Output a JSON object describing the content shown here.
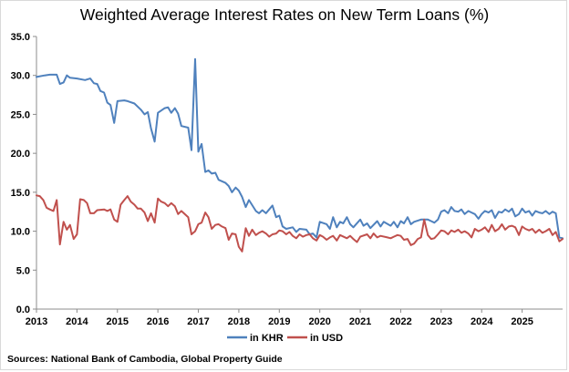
{
  "chart_data": {
    "type": "line",
    "title": "Weighted Average Interest Rates on New Term Loans (%)",
    "xlabel": "",
    "ylabel": "",
    "ylim": [
      0,
      35
    ],
    "yticks": [
      "0.0",
      "5.0",
      "10.0",
      "15.0",
      "20.0",
      "25.0",
      "30.0",
      "35.0"
    ],
    "xlim": [
      2013.0,
      2026.0
    ],
    "xticks": [
      "2013",
      "2014",
      "2015",
      "2016",
      "2017",
      "2018",
      "2019",
      "2020",
      "2021",
      "2022",
      "2023",
      "2024",
      "2025"
    ],
    "grid": false,
    "legend_position": "bottom",
    "series": [
      {
        "name": "in KHR",
        "color": "#4f81bd",
        "points": [
          [
            2013.0,
            29.8
          ],
          [
            2013.2,
            30.0
          ],
          [
            2013.33,
            30.1
          ],
          [
            2013.5,
            30.1
          ],
          [
            2013.58,
            28.9
          ],
          [
            2013.67,
            29.1
          ],
          [
            2013.75,
            30.0
          ],
          [
            2013.83,
            29.7
          ],
          [
            2014.0,
            29.6
          ],
          [
            2014.2,
            29.4
          ],
          [
            2014.33,
            29.6
          ],
          [
            2014.42,
            29.0
          ],
          [
            2014.5,
            28.9
          ],
          [
            2014.58,
            28.0
          ],
          [
            2014.67,
            27.8
          ],
          [
            2014.75,
            26.5
          ],
          [
            2014.83,
            26.2
          ],
          [
            2014.92,
            23.9
          ],
          [
            2015.0,
            26.7
          ],
          [
            2015.17,
            26.8
          ],
          [
            2015.25,
            26.7
          ],
          [
            2015.42,
            26.4
          ],
          [
            2015.58,
            25.6
          ],
          [
            2015.67,
            25.0
          ],
          [
            2015.75,
            25.3
          ],
          [
            2015.83,
            23.2
          ],
          [
            2015.92,
            21.5
          ],
          [
            2016.0,
            25.2
          ],
          [
            2016.17,
            25.8
          ],
          [
            2016.25,
            25.9
          ],
          [
            2016.33,
            25.2
          ],
          [
            2016.42,
            25.8
          ],
          [
            2016.5,
            25.1
          ],
          [
            2016.58,
            23.5
          ],
          [
            2016.75,
            23.3
          ],
          [
            2016.83,
            20.4
          ],
          [
            2016.92,
            32.1
          ],
          [
            2017.0,
            20.2
          ],
          [
            2017.08,
            21.2
          ],
          [
            2017.17,
            17.6
          ],
          [
            2017.25,
            17.8
          ],
          [
            2017.33,
            17.4
          ],
          [
            2017.42,
            17.5
          ],
          [
            2017.5,
            16.6
          ],
          [
            2017.67,
            16.2
          ],
          [
            2017.75,
            15.8
          ],
          [
            2017.83,
            15.0
          ],
          [
            2017.92,
            15.6
          ],
          [
            2018.0,
            15.2
          ],
          [
            2018.08,
            14.4
          ],
          [
            2018.17,
            13.1
          ],
          [
            2018.25,
            14.0
          ],
          [
            2018.42,
            12.6
          ],
          [
            2018.5,
            12.3
          ],
          [
            2018.58,
            12.7
          ],
          [
            2018.67,
            12.3
          ],
          [
            2018.75,
            12.8
          ],
          [
            2018.83,
            13.3
          ],
          [
            2018.92,
            11.8
          ],
          [
            2019.0,
            12.0
          ],
          [
            2019.08,
            10.6
          ],
          [
            2019.17,
            10.3
          ],
          [
            2019.33,
            10.5
          ],
          [
            2019.42,
            9.9
          ],
          [
            2019.5,
            10.3
          ],
          [
            2019.67,
            10.2
          ],
          [
            2019.75,
            9.6
          ],
          [
            2019.83,
            9.7
          ],
          [
            2019.92,
            9.2
          ],
          [
            2020.0,
            11.2
          ],
          [
            2020.17,
            10.9
          ],
          [
            2020.25,
            10.3
          ],
          [
            2020.33,
            11.8
          ],
          [
            2020.42,
            10.5
          ],
          [
            2020.5,
            11.2
          ],
          [
            2020.58,
            11.0
          ],
          [
            2020.67,
            11.8
          ],
          [
            2020.75,
            10.9
          ],
          [
            2020.83,
            10.5
          ],
          [
            2021.0,
            11.5
          ],
          [
            2021.08,
            10.7
          ],
          [
            2021.17,
            11.0
          ],
          [
            2021.25,
            10.4
          ],
          [
            2021.42,
            11.3
          ],
          [
            2021.5,
            10.6
          ],
          [
            2021.58,
            11.2
          ],
          [
            2021.75,
            10.7
          ],
          [
            2021.83,
            11.2
          ],
          [
            2021.92,
            10.5
          ],
          [
            2022.0,
            11.3
          ],
          [
            2022.08,
            11.0
          ],
          [
            2022.17,
            11.8
          ],
          [
            2022.25,
            10.9
          ],
          [
            2022.33,
            11.2
          ],
          [
            2022.5,
            11.5
          ],
          [
            2022.67,
            11.5
          ],
          [
            2022.75,
            11.3
          ],
          [
            2022.83,
            11.1
          ],
          [
            2022.92,
            11.5
          ],
          [
            2023.0,
            12.5
          ],
          [
            2023.08,
            12.7
          ],
          [
            2023.17,
            12.3
          ],
          [
            2023.25,
            13.1
          ],
          [
            2023.33,
            12.6
          ],
          [
            2023.42,
            12.5
          ],
          [
            2023.5,
            12.8
          ],
          [
            2023.58,
            12.2
          ],
          [
            2023.67,
            12.6
          ],
          [
            2023.75,
            12.4
          ],
          [
            2023.83,
            12.2
          ],
          [
            2023.92,
            11.6
          ],
          [
            2024.0,
            12.2
          ],
          [
            2024.08,
            12.6
          ],
          [
            2024.17,
            12.4
          ],
          [
            2024.25,
            12.7
          ],
          [
            2024.33,
            11.7
          ],
          [
            2024.42,
            12.5
          ],
          [
            2024.5,
            12.4
          ],
          [
            2024.58,
            12.8
          ],
          [
            2024.67,
            12.5
          ],
          [
            2024.75,
            12.9
          ],
          [
            2024.83,
            11.9
          ],
          [
            2024.92,
            12.2
          ],
          [
            2025.0,
            12.9
          ],
          [
            2025.08,
            12.4
          ],
          [
            2025.17,
            12.6
          ],
          [
            2025.25,
            12.0
          ],
          [
            2025.33,
            12.6
          ],
          [
            2025.42,
            12.4
          ],
          [
            2025.5,
            12.3
          ],
          [
            2025.58,
            12.6
          ],
          [
            2025.67,
            12.2
          ],
          [
            2025.75,
            12.5
          ],
          [
            2025.83,
            12.3
          ],
          [
            2025.92,
            9.2
          ],
          [
            2026.0,
            9.1
          ]
        ]
      },
      {
        "name": "in USD",
        "color": "#c0504d",
        "points": [
          [
            2013.0,
            14.6
          ],
          [
            2013.08,
            14.5
          ],
          [
            2013.17,
            14.0
          ],
          [
            2013.25,
            13.0
          ],
          [
            2013.33,
            12.8
          ],
          [
            2013.42,
            12.6
          ],
          [
            2013.5,
            14.0
          ],
          [
            2013.58,
            8.3
          ],
          [
            2013.67,
            11.2
          ],
          [
            2013.75,
            10.2
          ],
          [
            2013.83,
            10.8
          ],
          [
            2013.92,
            9.0
          ],
          [
            2014.0,
            9.6
          ],
          [
            2014.08,
            14.1
          ],
          [
            2014.17,
            14.0
          ],
          [
            2014.25,
            13.6
          ],
          [
            2014.33,
            12.3
          ],
          [
            2014.42,
            12.3
          ],
          [
            2014.5,
            12.7
          ],
          [
            2014.67,
            12.8
          ],
          [
            2014.75,
            12.6
          ],
          [
            2014.83,
            12.8
          ],
          [
            2014.92,
            11.5
          ],
          [
            2015.0,
            11.2
          ],
          [
            2015.08,
            13.4
          ],
          [
            2015.17,
            14.0
          ],
          [
            2015.25,
            14.5
          ],
          [
            2015.33,
            13.8
          ],
          [
            2015.42,
            13.4
          ],
          [
            2015.5,
            12.9
          ],
          [
            2015.58,
            12.9
          ],
          [
            2015.67,
            12.4
          ],
          [
            2015.75,
            11.3
          ],
          [
            2015.83,
            12.3
          ],
          [
            2015.92,
            11.1
          ],
          [
            2016.0,
            14.2
          ],
          [
            2016.08,
            13.8
          ],
          [
            2016.17,
            13.6
          ],
          [
            2016.25,
            13.2
          ],
          [
            2016.33,
            13.6
          ],
          [
            2016.42,
            13.2
          ],
          [
            2016.5,
            12.2
          ],
          [
            2016.58,
            12.6
          ],
          [
            2016.75,
            11.8
          ],
          [
            2016.83,
            9.6
          ],
          [
            2016.92,
            10.0
          ],
          [
            2017.0,
            10.9
          ],
          [
            2017.08,
            11.1
          ],
          [
            2017.17,
            12.4
          ],
          [
            2017.25,
            11.8
          ],
          [
            2017.33,
            10.3
          ],
          [
            2017.42,
            10.8
          ],
          [
            2017.5,
            10.9
          ],
          [
            2017.58,
            10.6
          ],
          [
            2017.67,
            10.4
          ],
          [
            2017.75,
            8.9
          ],
          [
            2017.83,
            9.7
          ],
          [
            2017.92,
            9.6
          ],
          [
            2018.0,
            8.0
          ],
          [
            2018.08,
            7.4
          ],
          [
            2018.17,
            10.4
          ],
          [
            2018.25,
            9.4
          ],
          [
            2018.33,
            10.2
          ],
          [
            2018.42,
            9.5
          ],
          [
            2018.5,
            9.8
          ],
          [
            2018.58,
            10.0
          ],
          [
            2018.67,
            9.7
          ],
          [
            2018.75,
            9.3
          ],
          [
            2018.83,
            9.6
          ],
          [
            2018.92,
            9.7
          ],
          [
            2019.0,
            10.1
          ],
          [
            2019.08,
            10.0
          ],
          [
            2019.17,
            9.6
          ],
          [
            2019.25,
            9.9
          ],
          [
            2019.33,
            9.4
          ],
          [
            2019.42,
            9.1
          ],
          [
            2019.5,
            9.6
          ],
          [
            2019.58,
            9.3
          ],
          [
            2019.67,
            9.5
          ],
          [
            2019.75,
            9.6
          ],
          [
            2019.83,
            9.1
          ],
          [
            2019.92,
            8.8
          ],
          [
            2020.0,
            9.5
          ],
          [
            2020.08,
            9.3
          ],
          [
            2020.17,
            8.9
          ],
          [
            2020.25,
            9.2
          ],
          [
            2020.33,
            9.4
          ],
          [
            2020.42,
            8.8
          ],
          [
            2020.5,
            9.5
          ],
          [
            2020.67,
            9.1
          ],
          [
            2020.75,
            9.4
          ],
          [
            2020.83,
            9.0
          ],
          [
            2020.92,
            8.6
          ],
          [
            2021.0,
            9.3
          ],
          [
            2021.17,
            9.6
          ],
          [
            2021.25,
            9.1
          ],
          [
            2021.33,
            9.7
          ],
          [
            2021.42,
            9.2
          ],
          [
            2021.5,
            9.4
          ],
          [
            2021.67,
            9.2
          ],
          [
            2021.75,
            9.1
          ],
          [
            2021.83,
            9.3
          ],
          [
            2021.92,
            9.5
          ],
          [
            2022.0,
            9.4
          ],
          [
            2022.08,
            8.9
          ],
          [
            2022.17,
            9.0
          ],
          [
            2022.25,
            8.2
          ],
          [
            2022.33,
            8.4
          ],
          [
            2022.42,
            9.0
          ],
          [
            2022.5,
            9.2
          ],
          [
            2022.58,
            11.5
          ],
          [
            2022.67,
            9.5
          ],
          [
            2022.75,
            9.0
          ],
          [
            2022.83,
            9.1
          ],
          [
            2022.92,
            9.6
          ],
          [
            2023.0,
            10.1
          ],
          [
            2023.08,
            10.0
          ],
          [
            2023.17,
            9.6
          ],
          [
            2023.25,
            10.1
          ],
          [
            2023.33,
            9.9
          ],
          [
            2023.42,
            10.2
          ],
          [
            2023.5,
            9.8
          ],
          [
            2023.58,
            10.0
          ],
          [
            2023.67,
            9.7
          ],
          [
            2023.75,
            9.2
          ],
          [
            2023.83,
            10.3
          ],
          [
            2023.92,
            10.0
          ],
          [
            2024.0,
            10.2
          ],
          [
            2024.08,
            10.5
          ],
          [
            2024.17,
            9.9
          ],
          [
            2024.25,
            10.8
          ],
          [
            2024.33,
            10.0
          ],
          [
            2024.42,
            10.3
          ],
          [
            2024.5,
            10.9
          ],
          [
            2024.58,
            10.2
          ],
          [
            2024.67,
            10.6
          ],
          [
            2024.75,
            10.7
          ],
          [
            2024.83,
            10.5
          ],
          [
            2024.92,
            9.5
          ],
          [
            2025.0,
            10.6
          ],
          [
            2025.08,
            10.3
          ],
          [
            2025.17,
            10.1
          ],
          [
            2025.25,
            10.3
          ],
          [
            2025.33,
            9.8
          ],
          [
            2025.42,
            10.2
          ],
          [
            2025.5,
            9.8
          ],
          [
            2025.58,
            10.0
          ],
          [
            2025.67,
            10.3
          ],
          [
            2025.75,
            9.5
          ],
          [
            2025.83,
            9.9
          ],
          [
            2025.92,
            8.7
          ],
          [
            2026.0,
            9.0
          ]
        ]
      }
    ]
  },
  "source_note": "Sources: National Bank of Cambodia, Global Property Guide"
}
